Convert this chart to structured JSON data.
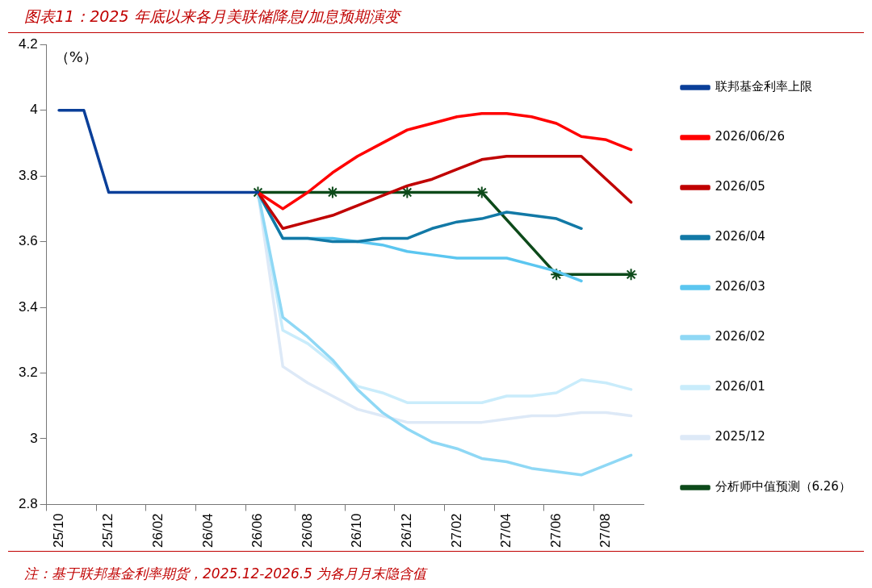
{
  "chart_data": {
    "type": "line",
    "title": "图表11：2025 年底以来各月美联储降息/加息预期演变",
    "ylabel": "（%）",
    "categories": [
      "25/10",
      null,
      "25/12",
      null,
      "26/02",
      null,
      "26/04",
      null,
      "26/06",
      null,
      "26/08",
      null,
      "26/10",
      null,
      "26/12",
      null,
      "27/02",
      null,
      "27/04",
      null,
      "27/06",
      null,
      "27/08",
      null
    ],
    "series": [
      {
        "name": "联邦基金利率上限",
        "color": "#0a3f99",
        "values": [
          4,
          4,
          3.75,
          3.75,
          3.75,
          3.75,
          3.75,
          3.75,
          3.75,
          null,
          null,
          null,
          null,
          null,
          null,
          null,
          null,
          null,
          null,
          null,
          null,
          null,
          null,
          null
        ]
      },
      {
        "name": "2026/06/26",
        "color": "#ff0000",
        "values": [
          null,
          null,
          null,
          null,
          null,
          null,
          null,
          null,
          3.75,
          3.7,
          3.75,
          3.81,
          3.86,
          3.9,
          3.94,
          3.96,
          3.98,
          3.99,
          3.99,
          3.98,
          3.96,
          3.92,
          3.91,
          3.88
        ]
      },
      {
        "name": "2026/05",
        "color": "#c00000",
        "values": [
          null,
          null,
          null,
          null,
          null,
          null,
          null,
          null,
          3.75,
          3.64,
          3.66,
          3.68,
          3.71,
          3.74,
          3.77,
          3.79,
          3.82,
          3.85,
          3.86,
          3.86,
          3.86,
          3.86,
          3.79,
          3.72
        ]
      },
      {
        "name": "2026/04",
        "color": "#1279a6",
        "values": [
          null,
          null,
          null,
          null,
          null,
          null,
          null,
          null,
          3.75,
          3.61,
          3.61,
          3.6,
          3.6,
          3.61,
          3.61,
          3.64,
          3.66,
          3.67,
          3.69,
          3.68,
          3.67,
          3.64,
          null,
          null
        ]
      },
      {
        "name": "2026/03",
        "color": "#5bc6f0",
        "values": [
          null,
          null,
          null,
          null,
          null,
          null,
          null,
          null,
          3.75,
          3.61,
          3.61,
          3.61,
          3.6,
          3.59,
          3.57,
          3.56,
          3.55,
          3.55,
          3.55,
          3.53,
          3.51,
          3.48,
          null,
          null
        ]
      },
      {
        "name": "2026/02",
        "color": "#8fd8f5",
        "values": [
          null,
          null,
          null,
          null,
          null,
          null,
          null,
          null,
          3.75,
          3.37,
          3.31,
          3.24,
          3.15,
          3.08,
          3.03,
          2.99,
          2.97,
          2.94,
          2.93,
          2.91,
          2.9,
          2.89,
          2.92,
          2.95
        ]
      },
      {
        "name": "2026/01",
        "color": "#c9ecfb",
        "values": [
          null,
          null,
          null,
          null,
          null,
          null,
          null,
          null,
          3.75,
          3.33,
          3.29,
          3.23,
          3.16,
          3.14,
          3.11,
          3.11,
          3.11,
          3.11,
          3.13,
          3.13,
          3.14,
          3.18,
          3.17,
          3.15
        ]
      },
      {
        "name": "2025/12",
        "color": "#dde9f7",
        "values": [
          null,
          null,
          null,
          null,
          null,
          null,
          null,
          null,
          3.75,
          3.22,
          3.17,
          3.13,
          3.09,
          3.07,
          3.05,
          3.05,
          3.05,
          3.05,
          3.06,
          3.07,
          3.07,
          3.08,
          3.08,
          3.07
        ]
      },
      {
        "name": "分析师中值预测（6.26）",
        "color": "#0d4a1a",
        "marker": "cross",
        "values": [
          null,
          null,
          null,
          null,
          null,
          null,
          null,
          null,
          3.75,
          null,
          null,
          3.75,
          null,
          null,
          3.75,
          null,
          null,
          3.75,
          null,
          null,
          3.5,
          null,
          null,
          3.5
        ]
      }
    ],
    "ylim": [
      2.8,
      4.2
    ],
    "yticks": [
      2.8,
      3,
      3.2,
      3.4,
      3.6,
      3.8,
      4,
      4.2
    ],
    "legend": "right",
    "marker": "none",
    "annotations": [
      "注：基于联邦基金利率期货，2025.12-2026.5 为各月月末隐含值"
    ]
  }
}
